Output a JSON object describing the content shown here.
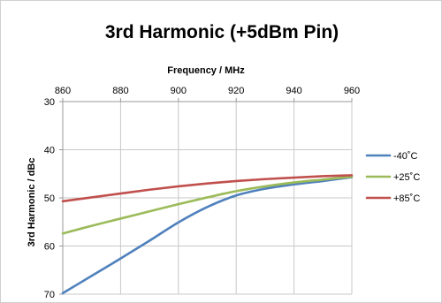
{
  "chart_data": {
    "type": "line",
    "title": "3rd Harmonic (+5dBm Pin)",
    "xlabel": "Frequency / MHz",
    "ylabel": "3rd Harmonic / dBc",
    "xlim": [
      860,
      960
    ],
    "ylim": [
      30,
      70
    ],
    "y_inverted": true,
    "x_axis_position": "top",
    "x_ticks": [
      860,
      880,
      900,
      920,
      940,
      960
    ],
    "y_ticks": [
      30,
      40,
      50,
      60,
      70
    ],
    "x_tick_labels": [
      "860",
      "880",
      "900",
      "920",
      "940",
      "960"
    ],
    "y_tick_labels": [
      "30",
      "40",
      "50",
      "60",
      "70"
    ],
    "grid": true,
    "legend_position": "right",
    "series": [
      {
        "name": "-40˚C",
        "color": "#4f81bd",
        "x": [
          860,
          870,
          880,
          890,
          900,
          910,
          920,
          930,
          940,
          950,
          960
        ],
        "y": [
          69.8,
          66.2,
          62.6,
          58.9,
          55.1,
          51.9,
          49.5,
          48.1,
          47.2,
          46.5,
          45.7
        ]
      },
      {
        "name": "+25˚C",
        "color": "#9bbb59",
        "x": [
          860,
          870,
          880,
          890,
          900,
          910,
          920,
          930,
          940,
          950,
          960
        ],
        "y": [
          57.4,
          55.8,
          54.3,
          52.8,
          51.3,
          49.9,
          48.6,
          47.6,
          46.8,
          46.2,
          45.6
        ]
      },
      {
        "name": "+85˚C",
        "color": "#c0504d",
        "x": [
          860,
          870,
          880,
          890,
          900,
          910,
          920,
          930,
          940,
          950,
          960
        ],
        "y": [
          50.7,
          49.9,
          49.1,
          48.3,
          47.6,
          47.0,
          46.5,
          46.1,
          45.8,
          45.5,
          45.3
        ]
      }
    ]
  }
}
